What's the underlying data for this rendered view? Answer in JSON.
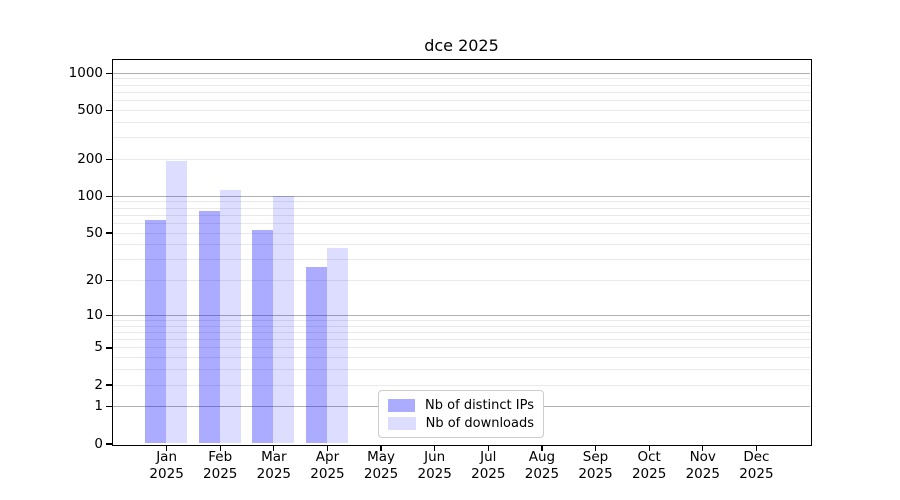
{
  "title": "dce 2025",
  "chart_data": {
    "type": "bar",
    "title": "dce 2025",
    "categories": [
      "Jan 2025",
      "Feb 2025",
      "Mar 2025",
      "Apr 2025",
      "May 2025",
      "Jun 2025",
      "Jul 2025",
      "Aug 2025",
      "Sep 2025",
      "Oct 2025",
      "Nov 2025",
      "Dec 2025"
    ],
    "series": [
      {
        "name": "Nb of distinct IPs",
        "color": "#0000ff",
        "alpha": 0.33,
        "values": [
          63,
          75,
          52,
          26,
          0,
          0,
          0,
          0,
          0,
          0,
          0,
          0
        ]
      },
      {
        "name": "Nb of downloads",
        "color": "#0000ff",
        "alpha": 0.135,
        "values": [
          193,
          112,
          100,
          37,
          0,
          0,
          0,
          0,
          0,
          0,
          0,
          0
        ]
      }
    ],
    "xlabel": "",
    "ylabel": "",
    "yscale": "log1p",
    "yticks": [
      0,
      1,
      2,
      5,
      10,
      20,
      50,
      100,
      200,
      500,
      1000
    ],
    "ylim": [
      0,
      1282
    ],
    "grid": true,
    "grid_major_values": [
      1,
      10,
      100,
      1000
    ],
    "grid_major_color": "#b0b0b0",
    "grid_minor_color": "#e9e9e9",
    "axis_color": "#000000",
    "legend_position": "lower center",
    "legend_border_color": "#cccccc"
  }
}
